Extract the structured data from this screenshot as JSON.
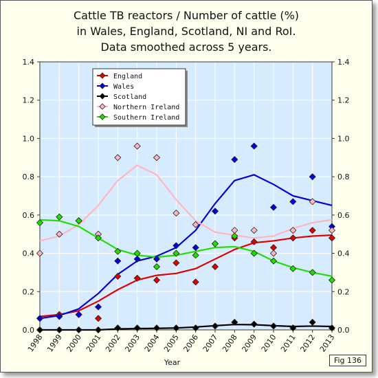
{
  "title_lines": [
    "Cattle TB reactors / Number of cattle (%)",
    "in Wales, England, Scotland, NI and RoI.",
    "Data smoothed across 5 years."
  ],
  "fig_label": "Fig 136",
  "chart_data": {
    "type": "scatter",
    "title": "Cattle TB reactors / Number of cattle (%) in Wales, England, Scotland, NI and RoI. Data smoothed across 5 years.",
    "xlabel": "Year",
    "ylabel": "",
    "x": [
      1998,
      1999,
      2000,
      2001,
      2002,
      2003,
      2004,
      2005,
      2006,
      2007,
      2008,
      2009,
      2010,
      2011,
      2012,
      2013
    ],
    "xlim": [
      1998,
      2013
    ],
    "ylim": [
      0,
      1.4
    ],
    "yticks": [
      "0.0",
      "0.2",
      "0.4",
      "0.6",
      "0.8",
      "1.0",
      "1.2",
      "1.4"
    ],
    "grid": true,
    "legend_position": "top-left",
    "series": [
      {
        "name": "England",
        "color": "#e00000",
        "points": [
          0.06,
          0.08,
          0.08,
          0.06,
          0.28,
          0.27,
          0.26,
          0.35,
          0.25,
          0.33,
          0.48,
          0.46,
          0.43,
          0.48,
          0.52,
          0.48
        ],
        "smoothed": [
          0.07,
          0.08,
          0.1,
          0.15,
          0.21,
          0.26,
          0.285,
          0.295,
          0.32,
          0.37,
          0.42,
          0.455,
          0.465,
          0.48,
          0.49,
          0.495
        ]
      },
      {
        "name": "Wales",
        "color": "#0000dd",
        "points": [
          0.06,
          0.07,
          0.08,
          0.12,
          0.36,
          0.37,
          0.37,
          0.44,
          0.43,
          0.62,
          0.89,
          0.96,
          0.64,
          0.67,
          0.8,
          0.54
        ],
        "smoothed": [
          0.06,
          0.075,
          0.11,
          0.19,
          0.29,
          0.36,
          0.385,
          0.43,
          0.52,
          0.66,
          0.78,
          0.81,
          0.76,
          0.7,
          0.675,
          0.65
        ]
      },
      {
        "name": "Scotland",
        "color": "#000000",
        "points": [
          0.0,
          0.0,
          0.0,
          0.0,
          0.01,
          0.01,
          0.01,
          0.01,
          0.01,
          0.02,
          0.04,
          0.03,
          0.02,
          0.01,
          0.04,
          0.01
        ],
        "smoothed": [
          0.0,
          0.0,
          0.0,
          0.0,
          0.005,
          0.007,
          0.008,
          0.01,
          0.015,
          0.022,
          0.028,
          0.027,
          0.022,
          0.018,
          0.02,
          0.018
        ]
      },
      {
        "name": "Northern Ireland",
        "color": "#ffb6c1",
        "points": [
          0.4,
          0.5,
          0.57,
          0.5,
          0.9,
          0.96,
          0.9,
          0.61,
          0.55,
          0.45,
          0.52,
          0.52,
          0.4,
          0.52,
          0.67,
          0.52
        ],
        "smoothed": [
          0.465,
          0.49,
          0.55,
          0.65,
          0.78,
          0.86,
          0.81,
          0.68,
          0.57,
          0.51,
          0.495,
          0.48,
          0.49,
          0.53,
          0.56,
          0.575
        ]
      },
      {
        "name": "Southern Ireland",
        "color": "#22dd00",
        "points": [
          0.56,
          0.59,
          0.57,
          0.48,
          0.41,
          0.4,
          0.33,
          0.4,
          0.39,
          0.45,
          0.49,
          0.4,
          0.36,
          0.32,
          0.3,
          0.26
        ],
        "smoothed": [
          0.575,
          0.57,
          0.54,
          0.48,
          0.42,
          0.39,
          0.38,
          0.39,
          0.41,
          0.43,
          0.435,
          0.41,
          0.36,
          0.325,
          0.3,
          0.28
        ]
      }
    ]
  }
}
